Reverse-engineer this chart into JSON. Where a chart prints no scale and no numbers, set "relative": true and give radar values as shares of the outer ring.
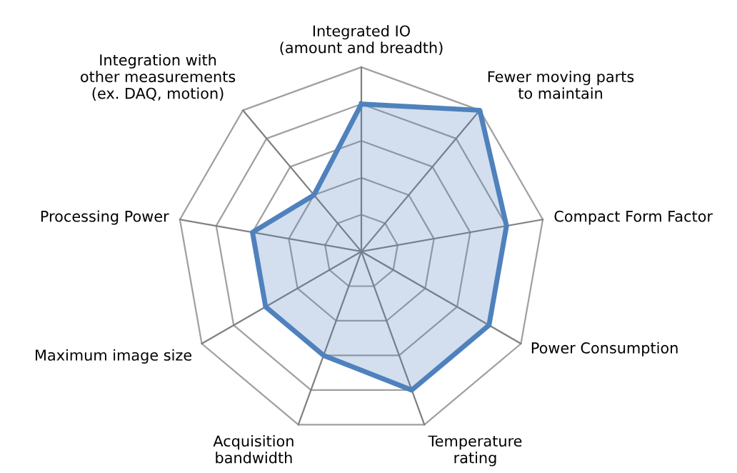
{
  "chart_data": {
    "type": "radar",
    "relative": true,
    "grid": true,
    "legend": false,
    "categories": [
      "Integrated IO\n(amount and breadth)",
      "Fewer moving parts\nto maintain",
      "Compact Form Factor",
      "Power Consumption",
      "Temperature\nrating",
      "Acquisition\nbandwidth",
      "Maximum image size",
      "Processing Power",
      "Integration with\nother measurements\n(ex. DAQ, motion)"
    ],
    "series": [
      {
        "color": "#4f81bd",
        "values": [
          0.8,
          1,
          0.8,
          0.8,
          0.8,
          0.6,
          0.6,
          0.6,
          0.4
        ]
      }
    ]
  }
}
